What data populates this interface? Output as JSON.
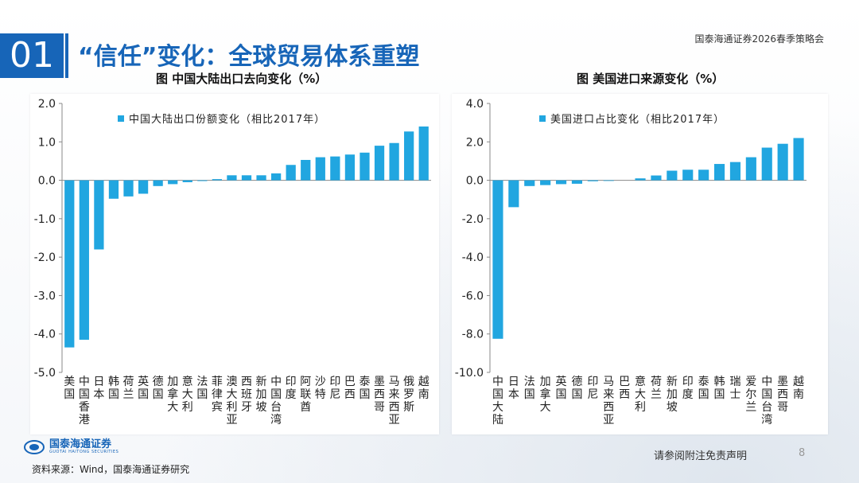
{
  "header": {
    "section_number": "01",
    "title": "“信任”变化：全球贸易体系重塑",
    "report_name": "国泰海通证券2026春季策略会"
  },
  "charts": {
    "left_title": "图 中国大陆出口去向变化（%）",
    "right_title": "图 美国进口来源变化（%）"
  },
  "colors": {
    "bar": "#21a6e0",
    "accent": "#1765b8"
  },
  "chart_data": [
    {
      "type": "bar",
      "title": "图 中国大陆出口去向变化（%）",
      "legend": "中国大陆出口份额变化（相比2017年）",
      "legend_position": "top",
      "categories": [
        "美国",
        "中国香港",
        "日本",
        "韩国",
        "荷兰",
        "英国",
        "德国",
        "加拿大",
        "意大利",
        "法国",
        "菲律宾",
        "澳大利亚",
        "西班牙",
        "新加坡",
        "中国台湾",
        "印度",
        "阿联酋",
        "沙特",
        "印尼",
        "巴西",
        "泰国",
        "墨西哥",
        "马来西亚",
        "俄罗斯",
        "越南"
      ],
      "values": [
        -4.35,
        -4.15,
        -1.8,
        -0.48,
        -0.42,
        -0.35,
        -0.15,
        -0.1,
        -0.05,
        -0.02,
        0.03,
        0.13,
        0.13,
        0.13,
        0.18,
        0.4,
        0.53,
        0.6,
        0.62,
        0.67,
        0.72,
        0.9,
        0.97,
        1.27,
        1.4
      ],
      "ylim": [
        -5.0,
        2.0
      ],
      "yticks": [
        "-5.0",
        "-4.0",
        "-3.0",
        "-2.0",
        "-1.0",
        "0.0",
        "1.0",
        "2.0"
      ],
      "ytick_values": [
        -5,
        -4,
        -3,
        -2,
        -1,
        0,
        1,
        2
      ]
    },
    {
      "type": "bar",
      "title": "图 美国进口来源变化（%）",
      "legend": "美国进口占比变化（相比2017年）",
      "legend_position": "top",
      "categories": [
        "中国大陆",
        "日本",
        "法国",
        "加拿大",
        "英国",
        "德国",
        "印尼",
        "马来西亚",
        "巴西",
        "意大利",
        "荷兰",
        "新加坡",
        "印度",
        "泰国",
        "韩国",
        "瑞士",
        "爱尔兰",
        "中国台湾",
        "墨西哥",
        "越南"
      ],
      "values": [
        -8.25,
        -1.4,
        -0.3,
        -0.25,
        -0.2,
        -0.18,
        -0.05,
        -0.03,
        0.0,
        0.1,
        0.25,
        0.5,
        0.55,
        0.55,
        0.85,
        0.95,
        1.2,
        1.7,
        1.9,
        2.2
      ],
      "ylim": [
        -10.0,
        4.0
      ],
      "yticks": [
        "-10.0",
        "-8.0",
        "-6.0",
        "-4.0",
        "-2.0",
        "0.0",
        "2.0",
        "4.0"
      ],
      "ytick_values": [
        -10,
        -8,
        -6,
        -4,
        -2,
        0,
        2,
        4
      ]
    }
  ],
  "footer": {
    "logo_text": "国泰海通证券",
    "logo_sub": "GUOTAI HAITONG SECURITIES",
    "source": "资料来源：Wind，国泰海通证券研究",
    "disclaimer": "请参阅附注免责声明",
    "page_number": "8"
  }
}
